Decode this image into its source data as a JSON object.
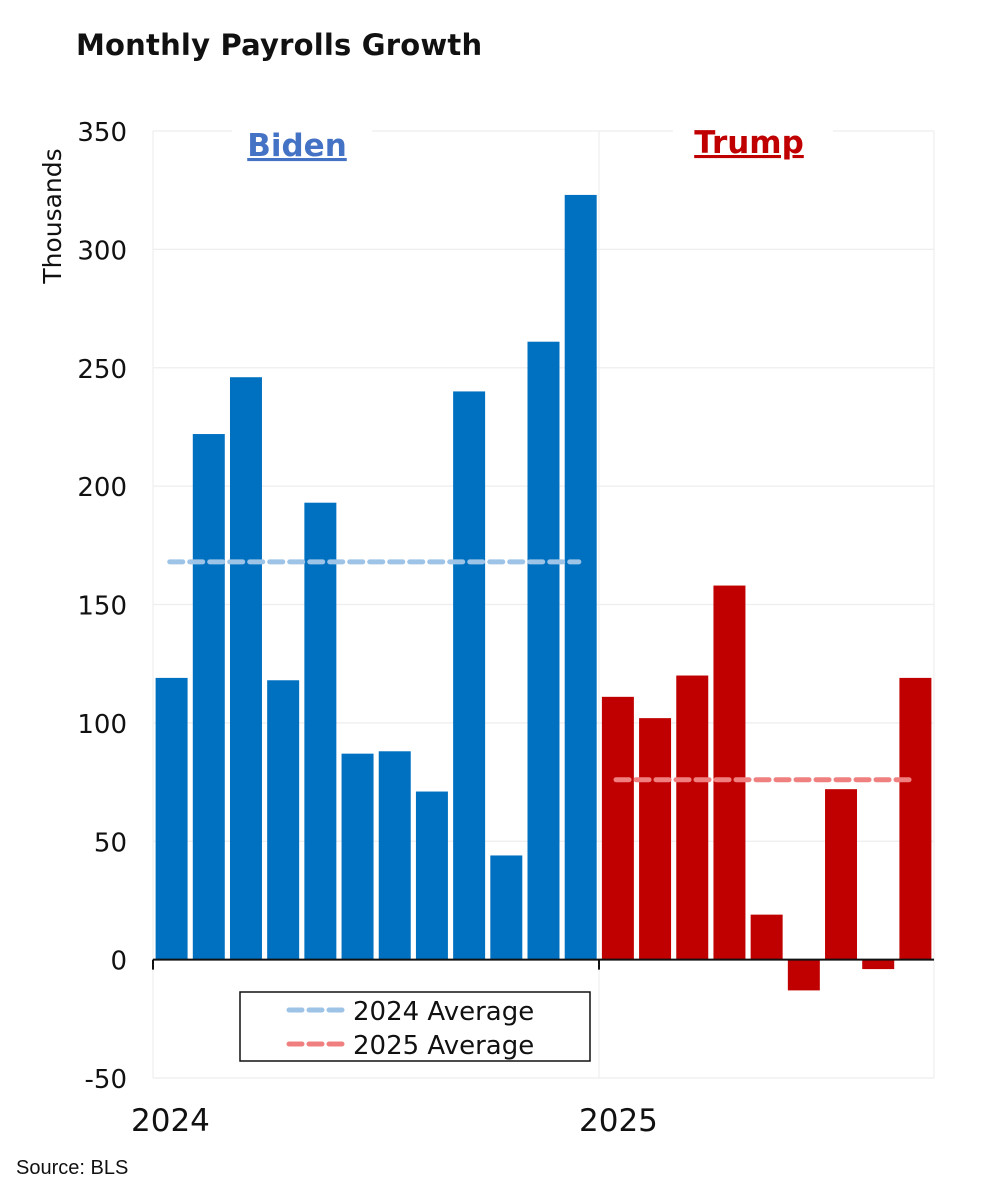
{
  "title": "Monthly Payrolls Growth",
  "source": "Source: BLS",
  "colors": {
    "biden_bar": "#0070C0",
    "trump_bar": "#C00000",
    "avg_2024": "#9DC3E6",
    "avg_2025": "#F08080",
    "biden_label": "#4472C4",
    "trump_label": "#C00000",
    "grid": "#EEEEEE"
  },
  "chart_data": {
    "type": "bar",
    "ylabel": "Thousands",
    "ylim": [
      -50,
      350
    ],
    "yticks": [
      -50,
      0,
      50,
      100,
      150,
      200,
      250,
      300,
      350
    ],
    "x_tick_labels": [
      "2024",
      "2025"
    ],
    "grid": true,
    "legend": {
      "placement": "bottom-left",
      "entries": [
        "2024 Average",
        "2025 Average"
      ]
    },
    "annotations": [
      "Biden",
      "Trump"
    ],
    "series": [
      {
        "name": "Biden",
        "period": "2024",
        "color": "#0070C0",
        "values": [
          119,
          222,
          246,
          118,
          193,
          87,
          88,
          71,
          240,
          44,
          261,
          323
        ]
      },
      {
        "name": "Trump",
        "period": "2025",
        "color": "#C00000",
        "values": [
          111,
          102,
          120,
          158,
          19,
          -13,
          72,
          -4,
          119
        ]
      }
    ],
    "averages": [
      {
        "name": "2024 Average",
        "value": 168,
        "color": "#9DC3E6"
      },
      {
        "name": "2025 Average",
        "value": 76,
        "color": "#F08080"
      }
    ]
  }
}
